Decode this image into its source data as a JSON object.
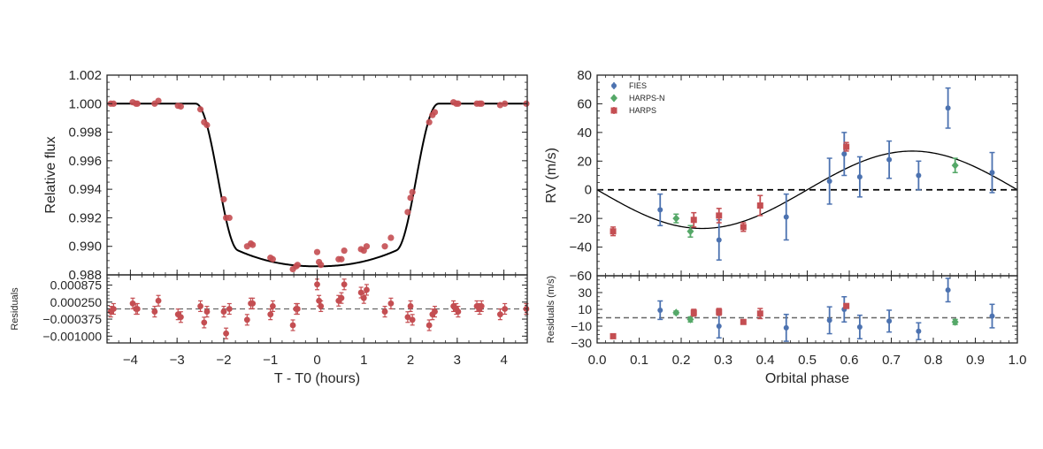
{
  "chart_data": [
    {
      "type": "scatter",
      "name": "transit-light-curve",
      "title": "",
      "xlabel": "T - T0 (hours)",
      "ylabel": "Relative flux",
      "xlim": [
        -4.5,
        4.5
      ],
      "ylim": [
        0.988,
        1.002
      ],
      "xticks": [
        -4,
        -3,
        -2,
        -1,
        0,
        1,
        2,
        3,
        4
      ],
      "xtick_labels": [
        "−4",
        "−3",
        "−2",
        "−1",
        "0",
        "1",
        "2",
        "3",
        "4"
      ],
      "yticks": [
        0.988,
        0.99,
        0.992,
        0.994,
        0.996,
        0.998,
        1.0,
        1.002
      ],
      "ytick_labels": [
        "0.988",
        "0.990",
        "0.992",
        "0.994",
        "0.996",
        "0.998",
        "1.000",
        "1.002"
      ],
      "grid": false,
      "point_color": "#c44e52",
      "model_color": "#000000",
      "model": {
        "depth": 0.0114,
        "t_total_hours": 5.2,
        "t_ingress_hours": 0.9
      },
      "points": [
        [
          -4.42,
          1.0
        ],
        [
          -4.36,
          1.0
        ],
        [
          -3.95,
          1.0001
        ],
        [
          -3.88,
          1.0
        ],
        [
          -3.85,
          1.0
        ],
        [
          -3.48,
          1.0
        ],
        [
          -3.4,
          1.0002
        ],
        [
          -2.98,
          0.99985
        ],
        [
          -2.92,
          0.9998
        ],
        [
          -2.5,
          0.9996
        ],
        [
          -2.42,
          0.9987
        ],
        [
          -2.36,
          0.9985
        ],
        [
          -2.0,
          0.9933
        ],
        [
          -1.95,
          0.992
        ],
        [
          -1.88,
          0.992
        ],
        [
          -1.5,
          0.99
        ],
        [
          -1.42,
          0.9902
        ],
        [
          -1.38,
          0.9901
        ],
        [
          -1.0,
          0.9892
        ],
        [
          -0.95,
          0.9891
        ],
        [
          -0.52,
          0.9884
        ],
        [
          -0.45,
          0.9886
        ],
        [
          -0.42,
          0.9887
        ],
        [
          0.0,
          0.9896
        ],
        [
          0.04,
          0.9889
        ],
        [
          0.08,
          0.9887
        ],
        [
          0.46,
          0.9891
        ],
        [
          0.52,
          0.9891
        ],
        [
          0.58,
          0.9897
        ],
        [
          0.94,
          0.9898
        ],
        [
          1.0,
          0.9897
        ],
        [
          1.06,
          0.99
        ],
        [
          1.45,
          0.99
        ],
        [
          1.58,
          0.9906
        ],
        [
          1.94,
          0.9924
        ],
        [
          2.0,
          0.9934
        ],
        [
          2.04,
          0.9938
        ],
        [
          2.4,
          0.9987
        ],
        [
          2.47,
          0.9992
        ],
        [
          2.52,
          0.9994
        ],
        [
          2.92,
          1.0001
        ],
        [
          2.98,
          1.0
        ],
        [
          3.02,
          1.0
        ],
        [
          3.42,
          1.0
        ],
        [
          3.48,
          1.0
        ],
        [
          3.52,
          1.0
        ],
        [
          3.92,
          0.9999
        ],
        [
          4.02,
          1.0
        ],
        [
          4.48,
          1.0
        ]
      ],
      "residuals": {
        "ylabel": "Residuals",
        "ylim": [
          -0.00125,
          0.00125
        ],
        "yticks": [
          0.000875,
          0.00025,
          -0.000375,
          -0.001
        ],
        "ytick_labels": [
          "0.000875",
          "0.000250",
          "−0.000375",
          "−0.001000"
        ],
        "points": [
          [
            -4.42,
            -0.0001
          ],
          [
            -4.36,
            0.0
          ],
          [
            -3.95,
            0.0002
          ],
          [
            -3.88,
            0.0
          ],
          [
            -3.85,
            0.0
          ],
          [
            -3.48,
            -0.0001
          ],
          [
            -3.4,
            0.0003
          ],
          [
            -2.98,
            -0.0002
          ],
          [
            -2.92,
            -0.0003
          ],
          [
            -2.5,
            0.0001
          ],
          [
            -2.42,
            -0.0005
          ],
          [
            -2.36,
            -0.0001
          ],
          [
            -2.0,
            -0.0001
          ],
          [
            -1.95,
            -0.0009
          ],
          [
            -1.88,
            0.0
          ],
          [
            -1.5,
            -0.0004
          ],
          [
            -1.42,
            0.0002
          ],
          [
            -1.38,
            0.0002
          ],
          [
            -1.0,
            -0.0002
          ],
          [
            -0.95,
            0.0001
          ],
          [
            -0.52,
            -0.0006
          ],
          [
            -0.45,
            0.0
          ],
          [
            -0.42,
            0.0
          ],
          [
            0.0,
            0.0009
          ],
          [
            0.04,
            0.0003
          ],
          [
            0.08,
            0.0001
          ],
          [
            0.46,
            0.0003
          ],
          [
            0.52,
            0.0004
          ],
          [
            0.58,
            0.0009
          ],
          [
            0.94,
            0.0006
          ],
          [
            1.0,
            0.0004
          ],
          [
            1.06,
            0.0007
          ],
          [
            1.45,
            -0.0001
          ],
          [
            1.58,
            0.0002
          ],
          [
            1.94,
            -0.0003
          ],
          [
            2.0,
            0.0001
          ],
          [
            2.04,
            -0.0004
          ],
          [
            2.4,
            -0.0006
          ],
          [
            2.47,
            -0.0002
          ],
          [
            2.52,
            -0.0001
          ],
          [
            2.92,
            0.0001
          ],
          [
            2.98,
            0.0
          ],
          [
            3.02,
            -0.0001
          ],
          [
            3.42,
            0.0001
          ],
          [
            3.48,
            0.0
          ],
          [
            3.52,
            0.0001
          ],
          [
            3.92,
            -0.0002
          ],
          [
            4.02,
            0.0
          ],
          [
            4.48,
            0.0
          ]
        ]
      }
    },
    {
      "type": "scatter",
      "name": "radial-velocity-curve",
      "title": "",
      "xlabel": "Orbital phase",
      "ylabel": "RV (m/s)",
      "xlim": [
        0.0,
        1.0
      ],
      "ylim": [
        -60,
        80
      ],
      "xticks": [
        0.0,
        0.1,
        0.2,
        0.3,
        0.4,
        0.5,
        0.6,
        0.7,
        0.8,
        0.9,
        1.0
      ],
      "xtick_labels": [
        "0.0",
        "0.1",
        "0.2",
        "0.3",
        "0.4",
        "0.5",
        "0.6",
        "0.7",
        "0.8",
        "0.9",
        "1.0"
      ],
      "yticks": [
        -60,
        -40,
        -20,
        0,
        20,
        40,
        60,
        80
      ],
      "ytick_labels": [
        "−60",
        "−40",
        "−20",
        "0",
        "20",
        "40",
        "60",
        "80"
      ],
      "grid": false,
      "legend_position": "top-left",
      "model": {
        "amplitude": 27,
        "shape": "-sin(2*pi*phase)"
      },
      "series": [
        {
          "name": "FIES",
          "color": "#4c72b0",
          "marker": "circle",
          "points": [
            {
              "x": 0.15,
              "y": -14,
              "err": 11
            },
            {
              "x": 0.29,
              "y": -35,
              "err": 14
            },
            {
              "x": 0.45,
              "y": -19,
              "err": 16
            },
            {
              "x": 0.553,
              "y": 6,
              "err": 16
            },
            {
              "x": 0.588,
              "y": 25,
              "err": 15
            },
            {
              "x": 0.625,
              "y": 9,
              "err": 14
            },
            {
              "x": 0.695,
              "y": 21,
              "err": 13
            },
            {
              "x": 0.765,
              "y": 10,
              "err": 10
            },
            {
              "x": 0.835,
              "y": 57,
              "err": 14
            },
            {
              "x": 0.94,
              "y": 12,
              "err": 14
            }
          ]
        },
        {
          "name": "HARPS-N",
          "color": "#55a868",
          "marker": "diamond",
          "points": [
            {
              "x": 0.188,
              "y": -20,
              "err": 3
            },
            {
              "x": 0.222,
              "y": -29,
              "err": 4
            },
            {
              "x": 0.852,
              "y": 17,
              "err": 5
            }
          ]
        },
        {
          "name": "HARPS",
          "color": "#c44e52",
          "marker": "square",
          "points": [
            {
              "x": 0.038,
              "y": -29,
              "err": 3
            },
            {
              "x": 0.23,
              "y": -21,
              "err": 5
            },
            {
              "x": 0.29,
              "y": -18,
              "err": 5
            },
            {
              "x": 0.348,
              "y": -26,
              "err": 3
            },
            {
              "x": 0.388,
              "y": -11,
              "err": 7
            },
            {
              "x": 0.593,
              "y": 30,
              "err": 3
            }
          ]
        }
      ],
      "residuals": {
        "ylabel": "Residuals (m/s)",
        "ylim": [
          -30,
          50
        ],
        "yticks": [
          -30,
          -10,
          10,
          30
        ],
        "ytick_labels": [
          "−30",
          "−10",
          "10",
          "30"
        ],
        "series": [
          {
            "name": "FIES",
            "points": [
              {
                "x": 0.15,
                "y": 9,
                "err": 11
              },
              {
                "x": 0.29,
                "y": -10,
                "err": 14
              },
              {
                "x": 0.45,
                "y": -12,
                "err": 16
              },
              {
                "x": 0.553,
                "y": -3,
                "err": 16
              },
              {
                "x": 0.588,
                "y": 10,
                "err": 15
              },
              {
                "x": 0.625,
                "y": -11,
                "err": 14
              },
              {
                "x": 0.695,
                "y": -4,
                "err": 13
              },
              {
                "x": 0.765,
                "y": -16,
                "err": 10
              },
              {
                "x": 0.835,
                "y": 33,
                "err": 14
              },
              {
                "x": 0.94,
                "y": 2,
                "err": 14
              }
            ]
          },
          {
            "name": "HARPS-N",
            "points": [
              {
                "x": 0.188,
                "y": 6,
                "err": 2
              },
              {
                "x": 0.222,
                "y": -2,
                "err": 3
              },
              {
                "x": 0.852,
                "y": -5,
                "err": 3
              }
            ]
          },
          {
            "name": "HARPS",
            "points": [
              {
                "x": 0.038,
                "y": -22,
                "err": 2
              },
              {
                "x": 0.23,
                "y": 6,
                "err": 4
              },
              {
                "x": 0.29,
                "y": 7,
                "err": 4
              },
              {
                "x": 0.348,
                "y": -5,
                "err": 2
              },
              {
                "x": 0.388,
                "y": 5,
                "err": 6
              },
              {
                "x": 0.593,
                "y": 14,
                "err": 2
              }
            ]
          }
        ]
      }
    }
  ]
}
